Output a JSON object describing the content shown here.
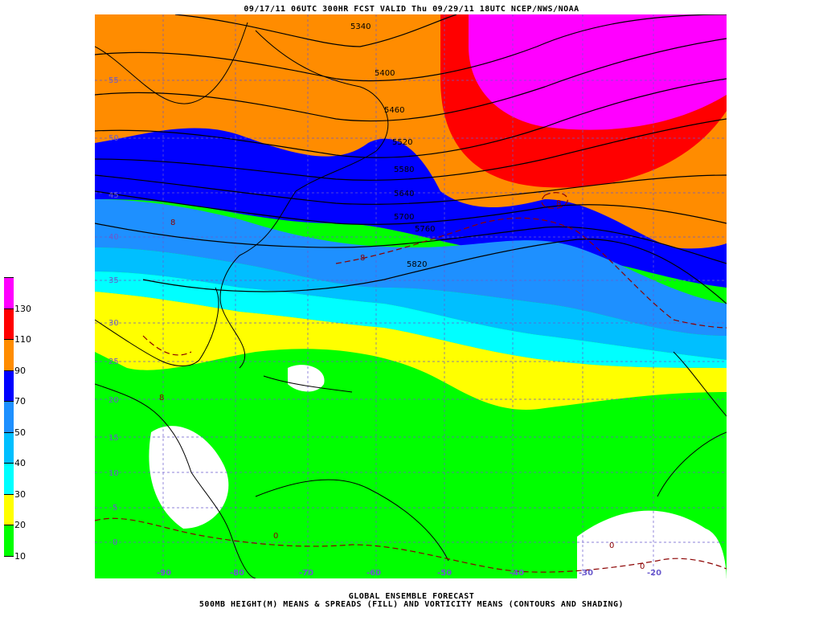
{
  "header": {
    "title": "09/17/11 06UTC  300HR  FCST VALID Thu 09/29/11 18UTC  NCEP/NWS/NOAA"
  },
  "footer": {
    "line1": "GLOBAL ENSEMBLE FORECAST",
    "line2": "500MB HEIGHT(M) MEANS & SPREADS (FILL) AND VORTICITY MEANS (CONTOURS AND SHADING)"
  },
  "colorbar": {
    "levels": [
      "",
      "10",
      "20",
      "30",
      "40",
      "50",
      "70",
      "90",
      "110",
      "130",
      ""
    ],
    "colors": [
      "#ffffff",
      "#00ff00",
      "#ffff00",
      "#00ffff",
      "#00bfff",
      "#1e90ff",
      "#0000ff",
      "#ff8c00",
      "#ff0000",
      "#ff00ff"
    ]
  },
  "axes": {
    "lat_labels": [
      "55",
      "50",
      "45",
      "40",
      "35",
      "30",
      "25",
      "20",
      "15",
      "10",
      "5",
      "0"
    ],
    "lon_labels": [
      "-90",
      "-80",
      "-70",
      "-60",
      "-50",
      "-40",
      "-30",
      "-20"
    ]
  },
  "height_contours": {
    "labels": [
      "5340",
      "5400",
      "5460",
      "5520",
      "5580",
      "5640",
      "5700",
      "5760",
      "5820"
    ]
  },
  "vorticity": {
    "labels": [
      "8",
      "8",
      "8",
      "0",
      "0",
      "0",
      "8"
    ]
  },
  "colors": {
    "grid": "#6a5acd",
    "coast": "#000000",
    "vort_contour": "#8b0000"
  }
}
